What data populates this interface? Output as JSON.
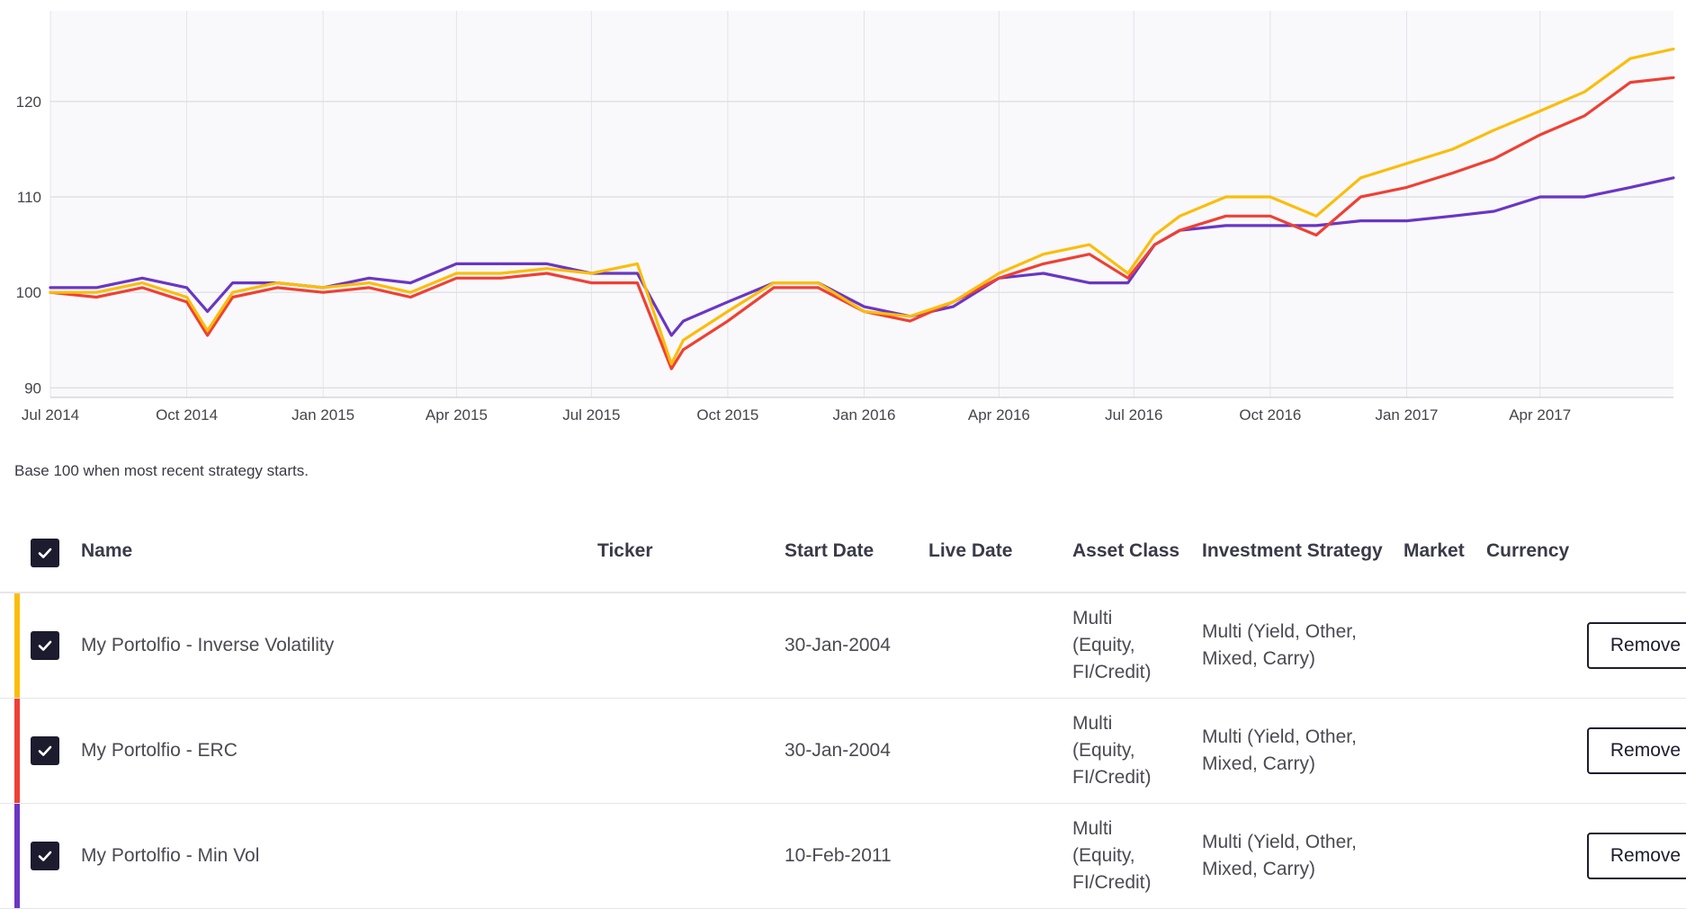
{
  "chart_data": {
    "type": "line",
    "title": "",
    "xlabel": "",
    "ylabel": "",
    "y_ticks": [
      "90",
      "100",
      "110",
      "120"
    ],
    "x_ticks": [
      "Jul 2014",
      "Oct 2014",
      "Jan 2015",
      "Apr 2015",
      "Jul 2015",
      "Oct 2015",
      "Jan 2016",
      "Apr 2016",
      "Jul 2016",
      "Oct 2016",
      "Jan 2017",
      "Apr 2017"
    ],
    "ylim": [
      89,
      129.5
    ],
    "xlim": [
      "2014-07-01",
      "2017-06-30"
    ],
    "grid": true,
    "x": [
      "2014-07-01",
      "2014-08-01",
      "2014-09-01",
      "2014-10-01",
      "2014-10-15",
      "2014-11-01",
      "2014-12-01",
      "2015-01-01",
      "2015-02-01",
      "2015-03-01",
      "2015-04-01",
      "2015-05-01",
      "2015-06-01",
      "2015-07-01",
      "2015-08-01",
      "2015-08-24",
      "2015-09-01",
      "2015-10-01",
      "2015-11-01",
      "2015-12-01",
      "2016-01-01",
      "2016-02-01",
      "2016-03-01",
      "2016-04-01",
      "2016-05-01",
      "2016-06-01",
      "2016-06-27",
      "2016-07-15",
      "2016-08-01",
      "2016-09-01",
      "2016-10-01",
      "2016-11-01",
      "2016-12-01",
      "2017-01-01",
      "2017-02-01",
      "2017-03-01",
      "2017-04-01",
      "2017-05-01",
      "2017-06-01",
      "2017-06-30"
    ],
    "series": [
      {
        "name": "My Portolfio - Inverse Volatility",
        "color": "#fbbd0b",
        "values": [
          100,
          100,
          101,
          99.5,
          96,
          100,
          101,
          100.5,
          101,
          100,
          102,
          102,
          102.5,
          102,
          103,
          92.5,
          95,
          98,
          101,
          101,
          98,
          97.5,
          99,
          102,
          104,
          105,
          102,
          106,
          108,
          110,
          110,
          108,
          112,
          113.5,
          115,
          117,
          119,
          121,
          124.5,
          125.5
        ]
      },
      {
        "name": "My Portolfio - ERC",
        "color": "#ef4034",
        "values": [
          100,
          99.5,
          100.5,
          99,
          95.5,
          99.5,
          100.5,
          100,
          100.5,
          99.5,
          101.5,
          101.5,
          102,
          101,
          101,
          92,
          94,
          97,
          100.5,
          100.5,
          98,
          97,
          99,
          101.5,
          103,
          104,
          101.5,
          105,
          106.5,
          108,
          108,
          106,
          110,
          111,
          112.5,
          114,
          116.5,
          118.5,
          122,
          122.5
        ]
      },
      {
        "name": "My Portolfio - Min Vol",
        "color": "#6a36c4",
        "values": [
          100.5,
          100.5,
          101.5,
          100.5,
          98,
          101,
          101,
          100.5,
          101.5,
          101,
          103,
          103,
          103,
          102,
          102,
          95.5,
          97,
          99,
          101,
          101,
          98.5,
          97.5,
          98.5,
          101.5,
          102,
          101,
          101,
          105,
          106.5,
          107,
          107,
          107,
          107.5,
          107.5,
          108,
          108.5,
          110,
          110,
          111,
          112
        ]
      }
    ]
  },
  "note": "Base 100 when most recent strategy starts.",
  "table": {
    "headers": {
      "name": "Name",
      "ticker": "Ticker",
      "start_date": "Start Date",
      "live_date": "Live Date",
      "asset_class": "Asset Class",
      "investment_strategy": "Investment Strategy",
      "market": "Market",
      "currency": "Currency"
    },
    "rows": [
      {
        "color": "#fbbd0b",
        "name": "My Portolfio - Inverse Volatility",
        "ticker": "",
        "start_date": "30-Jan-2004",
        "live_date": "",
        "asset_class": "Multi (Equity, FI/Credit)",
        "investment_strategy": "Multi (Yield, Other, Mixed, Carry)",
        "market": "",
        "currency": "",
        "action": "Remove"
      },
      {
        "color": "#ef4034",
        "name": "My Portolfio - ERC",
        "ticker": "",
        "start_date": "30-Jan-2004",
        "live_date": "",
        "asset_class": "Multi (Equity, FI/Credit)",
        "investment_strategy": "Multi (Yield, Other, Mixed, Carry)",
        "market": "",
        "currency": "",
        "action": "Remove"
      },
      {
        "color": "#6a36c4",
        "name": "My Portolfio - Min Vol",
        "ticker": "",
        "start_date": "10-Feb-2011",
        "live_date": "",
        "asset_class": "Multi (Equity, FI/Credit)",
        "investment_strategy": "Multi (Yield, Other, Mixed, Carry)",
        "market": "",
        "currency": "",
        "action": "Remove"
      }
    ]
  }
}
